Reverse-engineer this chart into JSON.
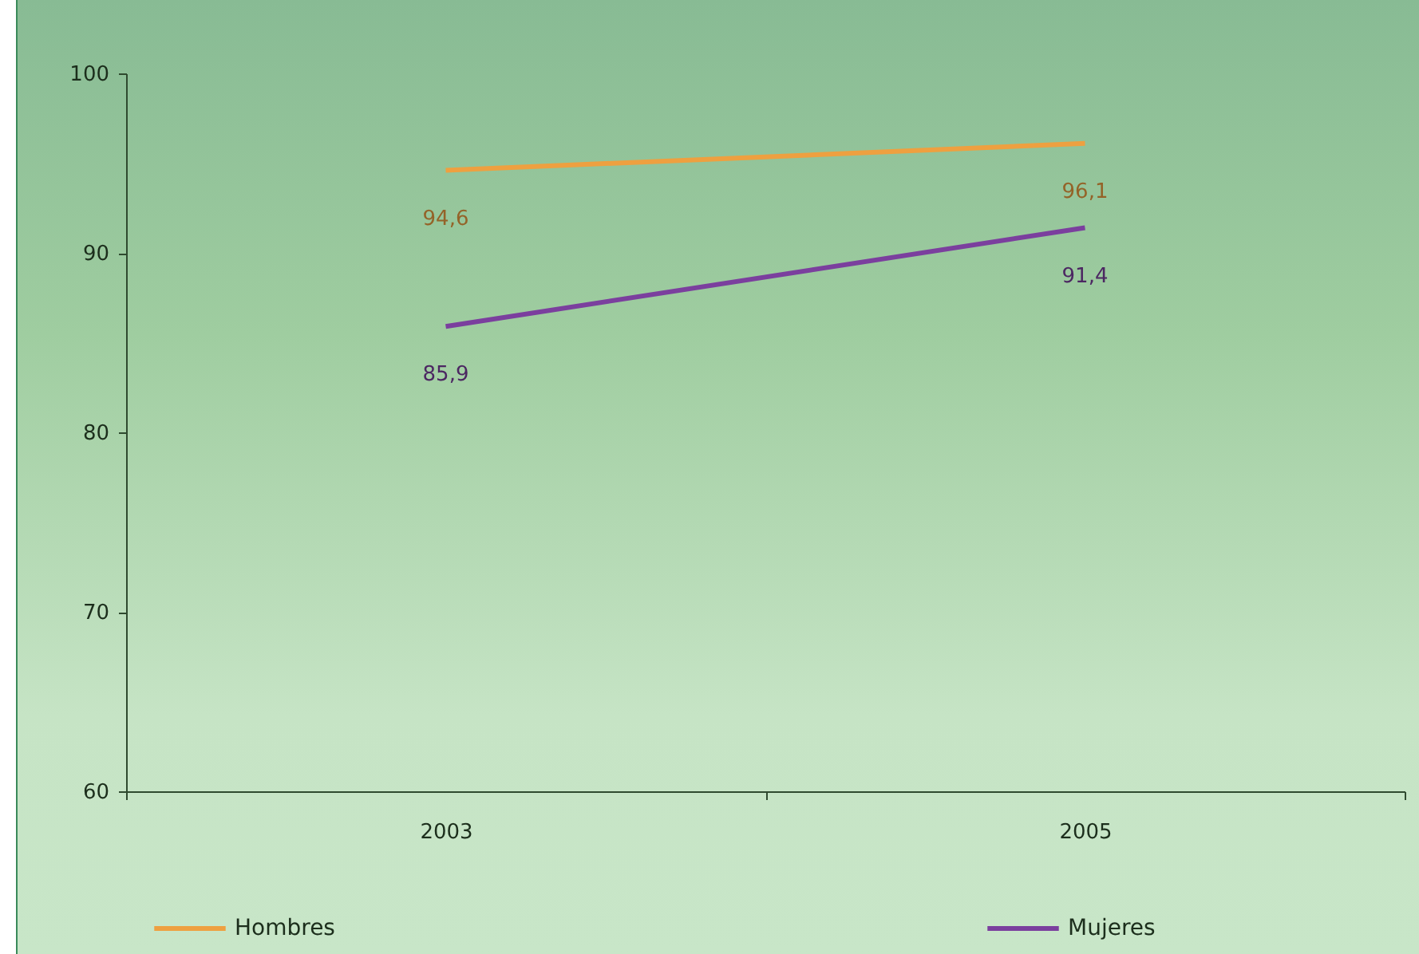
{
  "chart_data": {
    "type": "line",
    "categories": [
      "2003",
      "2005"
    ],
    "series": [
      {
        "name": "Hombres",
        "color": "#eea040",
        "values": [
          94.6,
          96.1
        ],
        "value_labels": [
          "94,6",
          "96,1"
        ]
      },
      {
        "name": "Mujeres",
        "color": "#7b3f9e",
        "values": [
          85.9,
          91.4
        ],
        "value_labels": [
          "85,9",
          "91,4"
        ]
      }
    ],
    "ylim": [
      60,
      100
    ],
    "yticks": [
      60,
      70,
      80,
      90,
      100
    ],
    "legend": "bottom",
    "grid": false
  }
}
